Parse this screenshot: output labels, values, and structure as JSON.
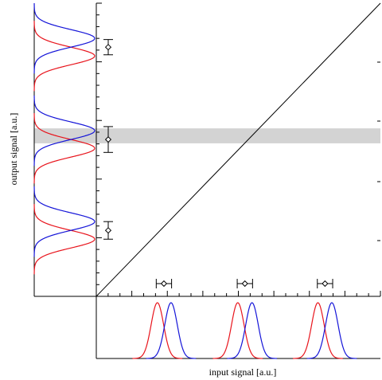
{
  "axes": {
    "xlabel": "input signal [a.u.]",
    "ylabel": "output signal [a.u.]"
  },
  "colors": {
    "curve_red": "#e8141c",
    "curve_blue": "#1414d8",
    "band": "#d3d3d3",
    "line": "#000000"
  },
  "chart_data": {
    "type": "scatter",
    "x_range": [
      0,
      1
    ],
    "y_range": [
      0,
      1
    ],
    "diagonal": {
      "from": [
        0,
        0
      ],
      "to": [
        1,
        1
      ]
    },
    "shaded_band_y": [
      0.522,
      0.573
    ],
    "x_gaussian_pairs": [
      {
        "red_mean": 0.215,
        "blue_mean": 0.263,
        "sigma": 0.022
      },
      {
        "red_mean": 0.498,
        "blue_mean": 0.548,
        "sigma": 0.022
      },
      {
        "red_mean": 0.78,
        "blue_mean": 0.829,
        "sigma": 0.022
      }
    ],
    "y_gaussian_pairs": [
      {
        "red_mean": 0.195,
        "blue_mean": 0.255,
        "sigma": 0.03
      },
      {
        "red_mean": 0.505,
        "blue_mean": 0.565,
        "sigma": 0.03
      },
      {
        "red_mean": 0.82,
        "blue_mean": 0.88,
        "sigma": 0.03
      }
    ],
    "x_error_markers": [
      {
        "x": 0.238,
        "xerr": 0.027
      },
      {
        "x": 0.523,
        "xerr": 0.027
      },
      {
        "x": 0.805,
        "xerr": 0.027
      }
    ],
    "y_error_markers": [
      {
        "y": 0.225,
        "yerr": 0.03
      },
      {
        "y": 0.535,
        "yerr": 0.044
      },
      {
        "y": 0.85,
        "yerr": 0.026
      }
    ]
  }
}
